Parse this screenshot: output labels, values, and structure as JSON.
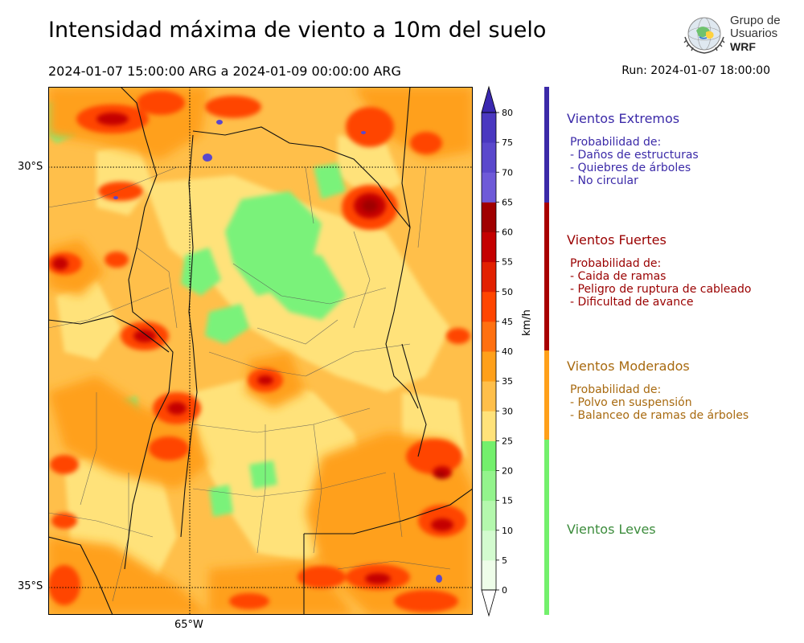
{
  "header": {
    "title": "Intensidad máxima de viento a 10m del suelo",
    "period": "2024-01-07 15:00:00 ARG  a  2024-01-09 00:00:00 ARG",
    "run": "Run: 2024-01-07 18:00:00"
  },
  "logo": {
    "line1": "Grupo de",
    "line2": "Usuarios",
    "line3": "WRF"
  },
  "map": {
    "lat_labels": [
      "30°S",
      "35°S"
    ],
    "lon_labels": [
      "65°W"
    ]
  },
  "colorbar": {
    "unit": "km/h",
    "ticks": [
      "0",
      "5",
      "10",
      "15",
      "20",
      "25",
      "30",
      "35",
      "40",
      "45",
      "50",
      "55",
      "60",
      "65",
      "70",
      "75",
      "80"
    ],
    "colors": [
      "#eefde9",
      "#d3fbcf",
      "#b4f8ad",
      "#93f48c",
      "#73f06c",
      "#ffe27a",
      "#ffbf4a",
      "#ffa01a",
      "#ff7010",
      "#ff4500",
      "#e22000",
      "#c40000",
      "#a00000",
      "#6e5ad8",
      "#5a48cc",
      "#4a38c0"
    ],
    "over_color": "#3a28b0",
    "under_color": "#ffffff"
  },
  "categories": [
    {
      "title": "Vientos Extremos",
      "color": "#3b2aa8",
      "lines": [
        "Probabilidad de:",
        "- Daños de estructuras",
        "- Quiebres de árboles",
        "- No circular"
      ]
    },
    {
      "title": "Vientos Fuertes",
      "color": "#9a0000",
      "lines": [
        "Probabilidad de:",
        "- Caida de ramas",
        "- Peligro de ruptura de cableado",
        "- Dificultad de avance"
      ]
    },
    {
      "title": "Vientos Moderados",
      "color": "#a86a10",
      "lines": [
        "Probabilidad de:",
        "- Polvo en suspensión",
        "- Balanceo de ramas de árboles"
      ]
    },
    {
      "title": "Vientos Leves",
      "color": "#3c8c3c",
      "lines": []
    }
  ],
  "category_bar_colors": [
    "#3b2aa8",
    "#a80000",
    "#ffa01a",
    "#73f06c"
  ]
}
